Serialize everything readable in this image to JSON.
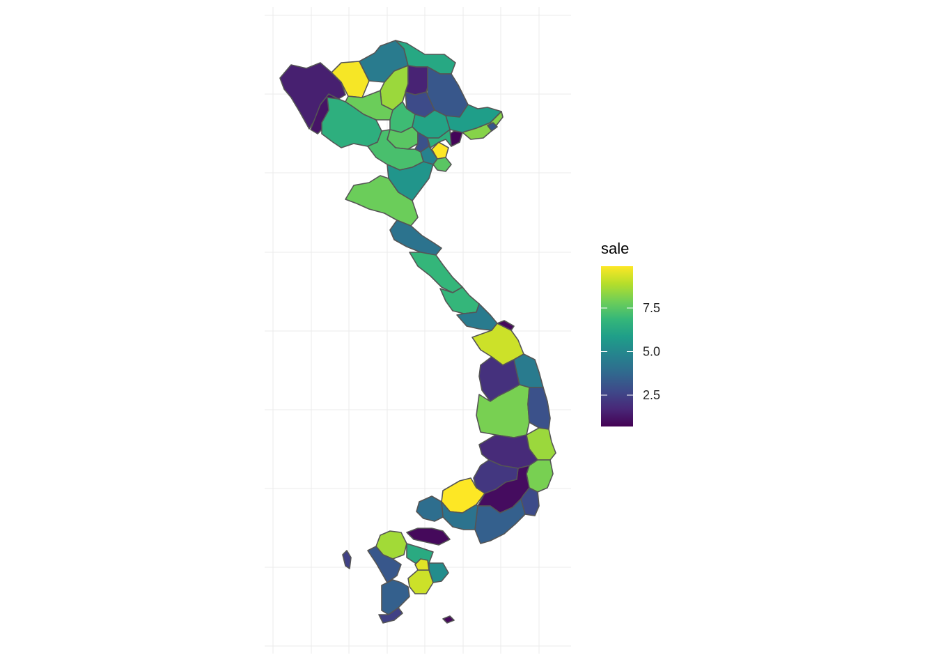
{
  "map": {
    "fill_scale": "viridis",
    "border_color": "#555555",
    "grid_color": "#ebebeb",
    "region_sale_values": [
      1.5,
      1.2,
      9.8,
      4.5,
      6.2,
      8.5,
      1.6,
      3.2,
      7.8,
      2.8,
      7.0,
      6.5,
      5.8,
      8.2,
      6.0,
      7.5,
      3.0,
      0.8,
      9.9,
      6.5,
      4.8,
      7.5,
      7.2,
      5.5,
      7.8,
      4.2,
      6.8,
      6.8,
      4.5,
      9.2,
      0.9,
      2.0,
      4.5,
      8.0,
      3.0,
      1.8,
      8.5,
      8.0,
      2.2,
      9.9,
      1.0,
      2.8,
      3.5,
      4.2,
      4.0,
      0.9,
      8.6,
      6.3,
      3.2,
      9.2,
      5.2,
      3.5,
      9.5,
      2.5
    ]
  },
  "legend": {
    "title": "sale",
    "min": 0.7,
    "max": 9.9,
    "ticks": [
      "7.5",
      "5.0",
      "2.5"
    ],
    "tick_values": [
      7.5,
      5.0,
      2.5
    ],
    "colors": [
      "#440154",
      "#482878",
      "#3e4989",
      "#31688e",
      "#26828e",
      "#1f9e89",
      "#35b779",
      "#6ece58",
      "#b5de2b",
      "#fde725"
    ]
  }
}
